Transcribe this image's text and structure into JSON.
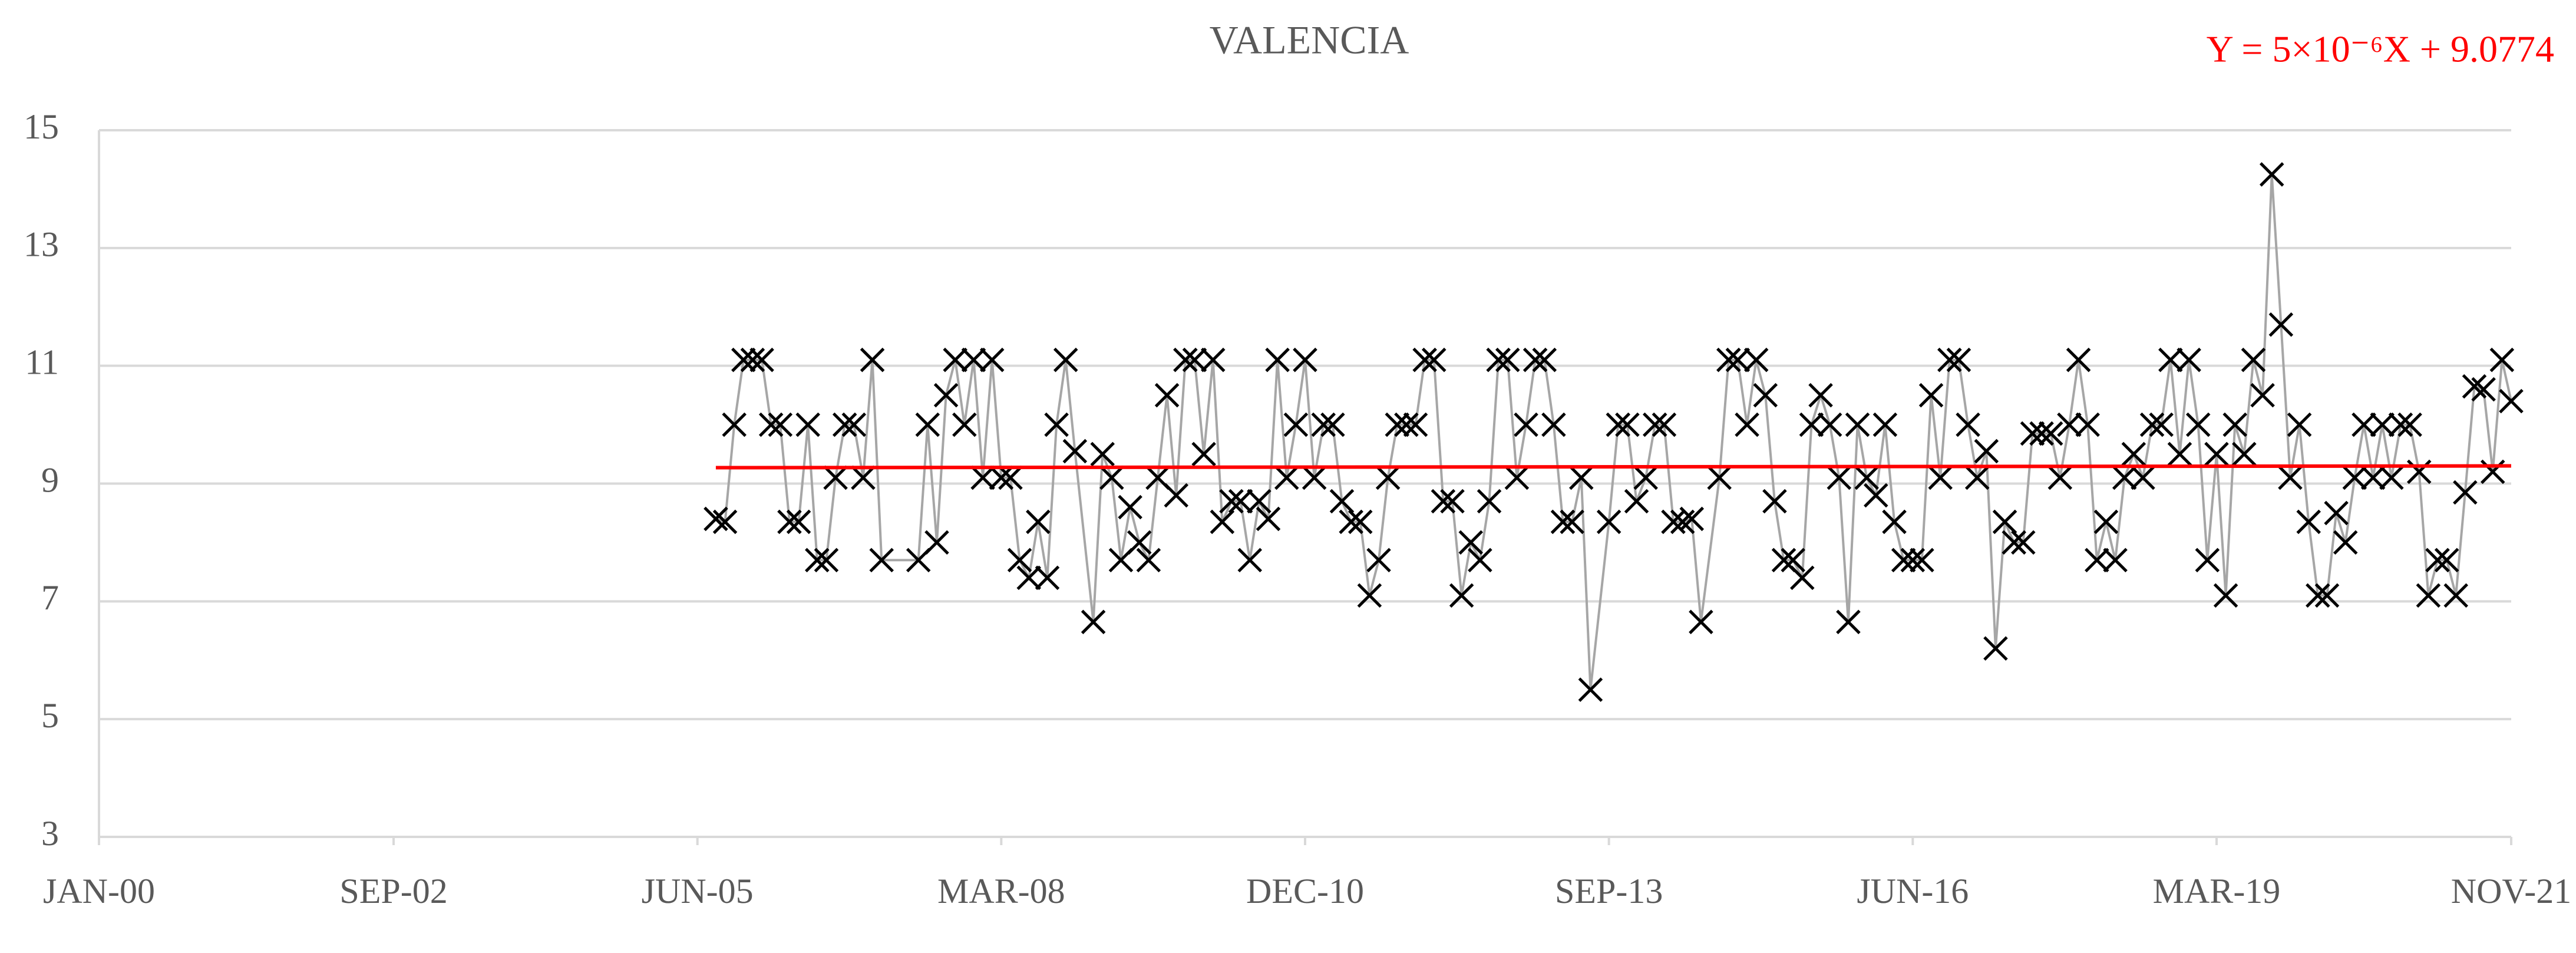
{
  "chart_data": {
    "type": "line",
    "title": "VALENCIA",
    "annotation": {
      "text": "Y = 5×10⁻⁶X + 9.0774",
      "color": "#ff0000"
    },
    "xlim": [
      "2000-01",
      "2021-11"
    ],
    "xticks": [
      {
        "value": "2000-01",
        "label": "JAN-00"
      },
      {
        "value": "2002-09",
        "label": "SEP-02"
      },
      {
        "value": "2005-06",
        "label": "JUN-05"
      },
      {
        "value": "2008-03",
        "label": "MAR-08"
      },
      {
        "value": "2010-12",
        "label": "DEC-10"
      },
      {
        "value": "2013-09",
        "label": "SEP-13"
      },
      {
        "value": "2016-06",
        "label": "JUN-16"
      },
      {
        "value": "2019-03",
        "label": "MAR-19"
      },
      {
        "value": "2021-11",
        "label": "NOV-21"
      }
    ],
    "ylim": [
      3,
      15
    ],
    "yticks": [
      3,
      5,
      7,
      9,
      11,
      13,
      15
    ],
    "grid": true,
    "x": [
      "2005-08",
      "2005-09",
      "2005-10",
      "2005-11",
      "2005-12",
      "2006-01",
      "2006-02",
      "2006-03",
      "2006-04",
      "2006-05",
      "2006-06",
      "2006-07",
      "2006-08",
      "2006-09",
      "2006-10",
      "2006-11",
      "2006-12",
      "2007-01",
      "2007-02",
      "2007-06",
      "2007-07",
      "2007-08",
      "2007-09",
      "2007-10",
      "2007-11",
      "2007-12",
      "2008-01",
      "2008-02",
      "2008-03",
      "2008-04",
      "2008-05",
      "2008-06",
      "2008-07",
      "2008-08",
      "2008-09",
      "2008-10",
      "2008-11",
      "2009-01",
      "2009-02",
      "2009-03",
      "2009-04",
      "2009-05",
      "2009-06",
      "2009-07",
      "2009-08",
      "2009-09",
      "2009-10",
      "2009-11",
      "2009-12",
      "2010-01",
      "2010-02",
      "2010-03",
      "2010-04",
      "2010-05",
      "2010-06",
      "2010-07",
      "2010-08",
      "2010-09",
      "2010-10",
      "2010-11",
      "2010-12",
      "2011-01",
      "2011-02",
      "2011-03",
      "2011-04",
      "2011-05",
      "2011-06",
      "2011-07",
      "2011-08",
      "2011-09",
      "2011-10",
      "2011-11",
      "2011-12",
      "2012-01",
      "2012-02",
      "2012-03",
      "2012-04",
      "2012-05",
      "2012-06",
      "2012-07",
      "2012-08",
      "2012-09",
      "2012-10",
      "2012-11",
      "2012-12",
      "2013-01",
      "2013-02",
      "2013-03",
      "2013-04",
      "2013-05",
      "2013-06",
      "2013-07",
      "2013-09",
      "2013-10",
      "2013-11",
      "2013-12",
      "2014-01",
      "2014-02",
      "2014-03",
      "2014-04",
      "2014-05",
      "2014-06",
      "2014-07",
      "2014-09",
      "2014-10",
      "2014-11",
      "2014-12",
      "2015-01",
      "2015-02",
      "2015-03",
      "2015-04",
      "2015-05",
      "2015-06",
      "2015-07",
      "2015-08",
      "2015-09",
      "2015-10",
      "2015-11",
      "2015-12",
      "2016-01",
      "2016-02",
      "2016-03",
      "2016-04",
      "2016-05",
      "2016-06",
      "2016-07",
      "2016-08",
      "2016-09",
      "2016-10",
      "2016-11",
      "2016-12",
      "2017-01",
      "2017-02",
      "2017-03",
      "2017-04",
      "2017-05",
      "2017-06",
      "2017-07",
      "2017-08",
      "2017-09",
      "2017-10",
      "2017-11",
      "2017-12",
      "2018-01",
      "2018-02",
      "2018-03",
      "2018-04",
      "2018-05",
      "2018-06",
      "2018-07",
      "2018-08",
      "2018-09",
      "2018-10",
      "2018-11",
      "2018-12",
      "2019-01",
      "2019-02",
      "2019-03",
      "2019-04",
      "2019-05",
      "2019-06",
      "2019-07",
      "2019-08",
      "2019-09",
      "2019-10",
      "2019-11",
      "2019-12",
      "2020-01",
      "2020-02",
      "2020-03",
      "2020-04",
      "2020-05",
      "2020-06",
      "2020-07",
      "2020-08",
      "2020-09",
      "2020-10",
      "2020-11",
      "2020-12",
      "2021-01",
      "2021-02",
      "2021-03",
      "2021-04",
      "2021-05",
      "2021-06",
      "2021-07",
      "2021-08",
      "2021-09",
      "2021-10",
      "2021-11"
    ],
    "series": [
      {
        "color": "#000000",
        "line_color": "#a6a6a6",
        "marker": "x",
        "values": [
          8.4,
          8.35,
          10,
          11.1,
          11.1,
          11.1,
          10,
          10,
          8.35,
          8.35,
          10,
          7.7,
          7.7,
          9.1,
          10,
          10,
          9.1,
          11.1,
          7.7,
          7.7,
          10,
          8,
          10.5,
          11.1,
          10,
          11.1,
          9.1,
          11.1,
          9.1,
          9.1,
          7.7,
          7.4,
          8.35,
          7.4,
          10,
          11.1,
          9.55,
          6.65,
          9.5,
          9.1,
          7.7,
          8.6,
          8,
          7.7,
          9.1,
          10.5,
          8.8,
          11.1,
          11.1,
          9.5,
          11.1,
          8.35,
          8.7,
          8.7,
          7.7,
          8.7,
          8.4,
          11.1,
          9.1,
          10,
          11.1,
          9.1,
          10,
          10,
          8.7,
          8.35,
          8.35,
          7.1,
          7.7,
          9.1,
          10,
          10,
          10,
          11.1,
          11.1,
          8.7,
          8.7,
          7.1,
          8,
          7.7,
          8.7,
          11.1,
          11.1,
          9.1,
          10,
          11.1,
          11.1,
          10,
          8.35,
          8.35,
          9.1,
          5.5,
          8.35,
          10,
          10,
          8.7,
          9.1,
          10,
          10,
          8.35,
          8.35,
          8.4,
          6.65,
          9.1,
          11.1,
          11.1,
          10,
          11.1,
          10.5,
          8.7,
          7.7,
          7.7,
          7.4,
          10,
          10.5,
          10,
          9.1,
          6.65,
          10,
          9.1,
          8.8,
          10,
          8.35,
          7.7,
          7.7,
          7.7,
          10.5,
          9.1,
          11.1,
          11.1,
          10,
          9.1,
          9.55,
          6.2,
          8.35,
          8,
          8,
          9.85,
          9.85,
          9.85,
          9.1,
          10,
          11.1,
          10,
          7.7,
          8.35,
          7.7,
          9.1,
          9.5,
          9.1,
          10,
          10,
          11.1,
          9.5,
          11.1,
          10,
          7.7,
          9.5,
          7.1,
          10,
          9.5,
          11.1,
          10.5,
          14.25,
          11.7,
          9.1,
          10,
          8.35,
          7.1,
          7.1,
          8.5,
          8,
          9.1,
          10,
          9.1,
          10,
          9.1,
          10,
          10,
          9.2,
          7.1,
          7.7,
          7.7,
          7.1,
          8.85,
          10.65,
          10.6,
          9.2,
          11.1,
          10.4
        ]
      }
    ],
    "trendline": {
      "color": "#ff0000",
      "x": [
        "2005-08",
        "2021-11"
      ],
      "values": [
        9.27,
        9.3
      ]
    }
  }
}
